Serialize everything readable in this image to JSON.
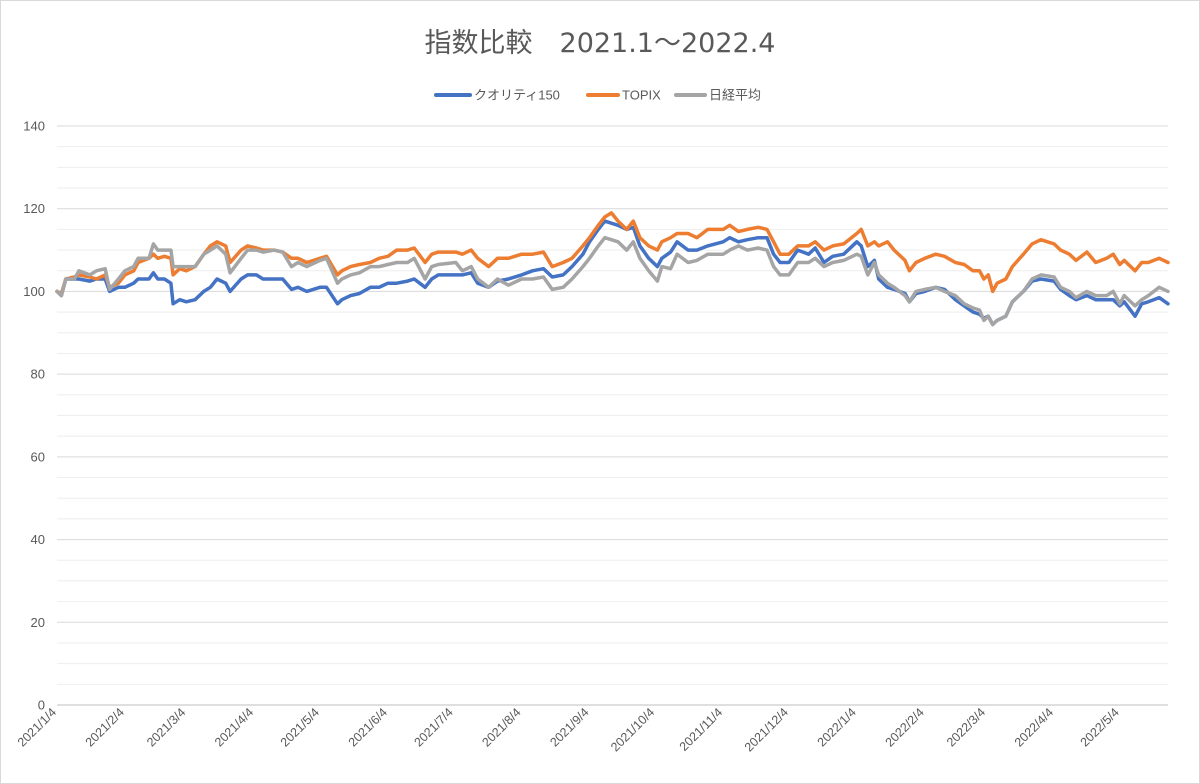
{
  "chart_data": {
    "type": "line",
    "title": "指数比較　2021.1～2022.4",
    "xlabel": "",
    "ylabel": "",
    "grid": true,
    "legend_position": "top",
    "ylim": [
      0,
      140
    ],
    "y_ticks": [
      0,
      20,
      40,
      60,
      80,
      100,
      120,
      140
    ],
    "xlim": [
      "2021/1/4",
      "2022/5/26"
    ],
    "x_tick_labels": [
      "2021/1/4",
      "2021/2/4",
      "2021/3/4",
      "2021/4/4",
      "2021/5/4",
      "2021/6/4",
      "2021/7/4",
      "2021/8/4",
      "2021/9/4",
      "2021/10/4",
      "2021/11/4",
      "2021/12/4",
      "2022/1/4",
      "2022/2/4",
      "2022/3/4",
      "2022/4/4",
      "2022/5/4"
    ],
    "x": [
      "2021/1/4",
      "2021/1/6",
      "2021/1/8",
      "2021/1/12",
      "2021/1/14",
      "2021/1/19",
      "2021/1/22",
      "2021/1/26",
      "2021/1/28",
      "2021/2/1",
      "2021/2/4",
      "2021/2/8",
      "2021/2/10",
      "2021/2/15",
      "2021/2/17",
      "2021/2/19",
      "2021/2/22",
      "2021/2/25",
      "2021/2/26",
      "2021/3/1",
      "2021/3/4",
      "2021/3/8",
      "2021/3/12",
      "2021/3/15",
      "2021/3/18",
      "2021/3/22",
      "2021/3/24",
      "2021/3/29",
      "2021/4/1",
      "2021/4/5",
      "2021/4/8",
      "2021/4/13",
      "2021/4/17",
      "2021/4/21",
      "2021/4/24",
      "2021/4/28",
      "2021/5/4",
      "2021/5/7",
      "2021/5/12",
      "2021/5/14",
      "2021/5/18",
      "2021/5/22",
      "2021/5/27",
      "2021/5/31",
      "2021/6/4",
      "2021/6/8",
      "2021/6/13",
      "2021/6/16",
      "2021/6/21",
      "2021/6/24",
      "2021/6/27",
      "2021/7/5",
      "2021/7/8",
      "2021/7/12",
      "2021/7/15",
      "2021/7/20",
      "2021/7/24",
      "2021/7/29",
      "2021/8/4",
      "2021/8/9",
      "2021/8/14",
      "2021/8/18",
      "2021/8/23",
      "2021/8/27",
      "2021/9/1",
      "2021/9/4",
      "2021/9/8",
      "2021/9/11",
      "2021/9/14",
      "2021/9/17",
      "2021/9/21",
      "2021/9/24",
      "2021/9/27",
      "2021/10/1",
      "2021/10/5",
      "2021/10/7",
      "2021/10/11",
      "2021/10/14",
      "2021/10/19",
      "2021/10/23",
      "2021/10/28",
      "2021/11/4",
      "2021/11/7",
      "2021/11/11",
      "2021/11/15",
      "2021/11/20",
      "2021/11/24",
      "2021/11/27",
      "2021/11/30",
      "2021/12/4",
      "2021/12/8",
      "2021/12/13",
      "2021/12/16",
      "2021/12/20",
      "2021/12/24",
      "2021/12/29",
      "2022/1/4",
      "2022/1/6",
      "2022/1/9",
      "2022/1/12",
      "2022/1/14",
      "2022/1/18",
      "2022/1/21",
      "2022/1/26",
      "2022/1/28",
      "2022/1/31",
      "2022/2/4",
      "2022/2/9",
      "2022/2/13",
      "2022/2/18",
      "2022/2/22",
      "2022/2/26",
      "2022/3/1",
      "2022/3/3",
      "2022/3/5",
      "2022/3/7",
      "2022/3/9",
      "2022/3/13",
      "2022/3/16",
      "2022/3/21",
      "2022/3/25",
      "2022/3/29",
      "2022/4/4",
      "2022/4/7",
      "2022/4/11",
      "2022/4/14",
      "2022/4/19",
      "2022/4/23",
      "2022/4/28",
      "2022/5/1",
      "2022/5/4",
      "2022/5/6",
      "2022/5/11",
      "2022/5/14",
      "2022/5/17",
      "2022/5/22",
      "2022/5/26"
    ],
    "series": [
      {
        "name": "クオリティ150",
        "color": "#4472C4",
        "values": [
          100,
          99,
          103,
          103,
          103,
          102.5,
          103,
          103,
          100,
          101,
          101,
          102,
          103,
          103,
          104.5,
          103,
          103,
          102,
          97,
          98,
          97.5,
          98,
          100,
          101,
          103,
          102,
          100,
          103,
          104,
          104,
          103,
          103,
          103,
          100.5,
          101,
          100,
          101,
          101,
          97,
          98,
          99,
          99.5,
          101,
          101,
          102,
          102,
          102.5,
          103,
          101,
          103,
          104,
          104,
          104,
          104.5,
          102,
          101,
          102.5,
          103,
          104,
          105,
          105.5,
          103.5,
          104,
          106,
          109,
          112,
          115,
          117,
          116.5,
          116,
          115,
          115.5,
          111,
          108,
          106,
          108,
          109.5,
          112,
          110,
          110,
          111,
          112,
          113,
          112,
          112.5,
          113,
          113,
          109,
          107,
          107,
          110,
          109,
          110.5,
          107,
          108.5,
          109,
          112,
          111,
          106,
          107.5,
          103,
          101,
          100.5,
          99.5,
          97.5,
          99.5,
          100,
          101,
          100.5,
          98,
          96.5,
          95,
          94.5,
          93.5,
          94,
          92,
          93,
          94,
          97.5,
          100,
          102.5,
          103,
          102.5,
          100.5,
          99,
          98,
          99,
          98,
          98,
          98,
          96.5,
          97.5,
          94,
          97,
          97.5,
          98.5,
          97
        ]
      },
      {
        "name": "TOPIX",
        "color": "#ED7D31",
        "values": [
          100,
          99.5,
          103,
          103.5,
          104,
          103.5,
          103,
          104,
          101,
          102,
          104,
          105,
          107,
          108,
          109,
          108,
          108.5,
          108,
          104,
          105.5,
          105,
          106,
          109,
          111,
          112,
          111,
          107,
          110,
          111,
          110.5,
          110,
          110,
          109.5,
          108,
          108,
          107,
          108,
          108.5,
          104,
          105,
          106,
          106.5,
          107,
          108,
          108.5,
          110,
          110,
          110.5,
          107,
          109,
          109.5,
          109.5,
          109,
          110,
          108,
          106,
          108,
          108,
          109,
          109,
          109.5,
          106,
          107,
          108,
          111,
          113,
          116,
          118,
          119,
          117,
          115,
          117,
          113,
          111,
          110,
          112,
          113,
          114,
          114,
          113,
          115,
          115,
          116,
          114.5,
          115,
          115.5,
          115,
          112,
          109,
          109,
          111,
          111,
          112,
          110,
          111,
          111.5,
          114,
          115,
          111,
          112,
          111,
          112,
          110,
          107.5,
          105,
          107,
          108,
          109,
          108.5,
          107,
          106.5,
          105,
          105,
          103,
          104,
          100,
          102,
          103,
          106,
          109,
          111.5,
          112.5,
          111.5,
          110,
          109,
          107.5,
          109.5,
          107,
          108,
          109,
          106.5,
          107.5,
          105,
          107,
          107,
          108,
          107
        ]
      },
      {
        "name": "日経平均",
        "color": "#A5A5A5",
        "values": [
          100,
          99,
          103,
          103,
          105,
          104,
          105,
          105.5,
          100.5,
          103,
          105,
          106,
          108,
          108,
          111.5,
          110,
          110,
          110,
          106,
          106,
          106,
          106,
          109,
          110,
          111,
          109,
          104.5,
          108,
          110,
          110,
          109.5,
          110,
          109.5,
          106,
          107,
          106,
          107.5,
          108,
          102,
          103,
          104,
          104.5,
          106,
          106,
          106.5,
          107,
          107,
          108,
          103,
          106,
          106.5,
          107,
          105,
          106,
          103,
          101,
          103,
          101.5,
          103,
          103,
          103.5,
          100.5,
          101,
          103,
          106,
          108,
          111,
          113,
          112.5,
          112,
          110,
          112,
          108,
          105,
          102.5,
          106,
          105.5,
          109,
          107,
          107.5,
          109,
          109,
          110,
          111,
          110,
          110.5,
          110,
          106,
          104,
          104,
          107,
          107,
          108,
          106,
          107,
          107.5,
          109,
          108.5,
          104,
          107,
          104,
          102,
          101,
          99,
          97.5,
          100,
          100.5,
          101,
          100,
          99,
          97,
          96,
          95.5,
          93,
          94,
          92,
          93,
          94,
          97.5,
          100,
          103,
          104,
          103.5,
          101,
          100,
          98.5,
          100,
          99,
          99,
          100,
          97,
          99,
          96.5,
          98,
          99,
          101,
          100
        ]
      }
    ]
  }
}
